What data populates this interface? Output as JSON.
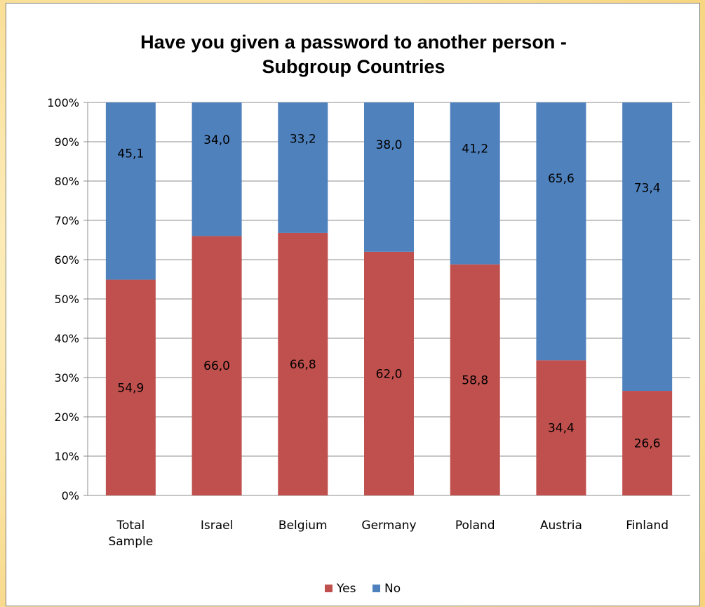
{
  "chart_data": {
    "type": "bar",
    "stacked": true,
    "title_lines": [
      "Have you given a password to another person -",
      "Subgroup Countries"
    ],
    "categories": [
      [
        "Total",
        "Sample"
      ],
      [
        "Israel"
      ],
      [
        "Belgium"
      ],
      [
        "Germany"
      ],
      [
        "Poland"
      ],
      [
        "Austria"
      ],
      [
        "Finland"
      ]
    ],
    "series": [
      {
        "name": "Yes",
        "color": "#c0504d",
        "values": [
          54.9,
          66.0,
          66.8,
          62.0,
          58.8,
          34.4,
          26.6
        ],
        "labels": [
          "54,9",
          "66,0",
          "66,8",
          "62,0",
          "58,8",
          "34,4",
          "26,6"
        ]
      },
      {
        "name": "No",
        "color": "#4f81bd",
        "values": [
          45.1,
          34.0,
          33.2,
          38.0,
          41.2,
          65.6,
          73.4
        ],
        "labels": [
          "45,1",
          "34,0",
          "33,2",
          "38,0",
          "41,2",
          "65,6",
          "73,4"
        ]
      }
    ],
    "y_ticks": [
      "0%",
      "10%",
      "20%",
      "30%",
      "40%",
      "50%",
      "60%",
      "70%",
      "80%",
      "90%",
      "100%"
    ],
    "ylim": [
      0,
      100
    ],
    "grid": true,
    "legend_position": "bottom"
  }
}
